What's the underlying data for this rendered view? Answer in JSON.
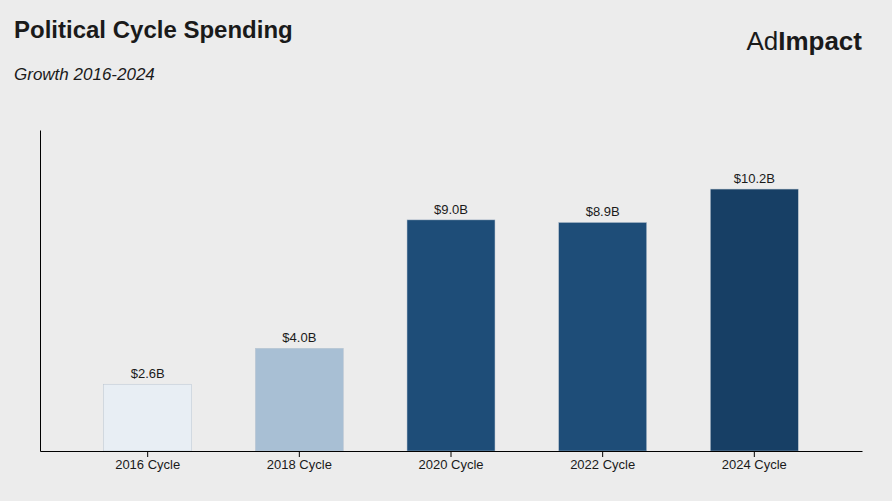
{
  "chart_data": {
    "type": "bar",
    "title": "Political Cycle Spending",
    "subtitle": "Growth 2016-2024",
    "annotations": [
      "Ad",
      "Impact"
    ],
    "categories": [
      "2016 Cycle",
      "2018 Cycle",
      "2020 Cycle",
      "2022 Cycle",
      "2024 Cycle"
    ],
    "values": [
      2.6,
      4.0,
      9.0,
      8.9,
      10.2
    ],
    "value_labels": [
      "$2.6B",
      "$4.0B",
      "$9.0B",
      "$8.9B",
      "$10.2B"
    ],
    "colors": [
      "#e8eef4",
      "#a8bfd4",
      "#1e4d78",
      "#1e4d78",
      "#173f65"
    ],
    "ylim": [
      0,
      12.5
    ],
    "yticks": [],
    "grid": false,
    "data_labels": true,
    "tick_labels": "x"
  }
}
